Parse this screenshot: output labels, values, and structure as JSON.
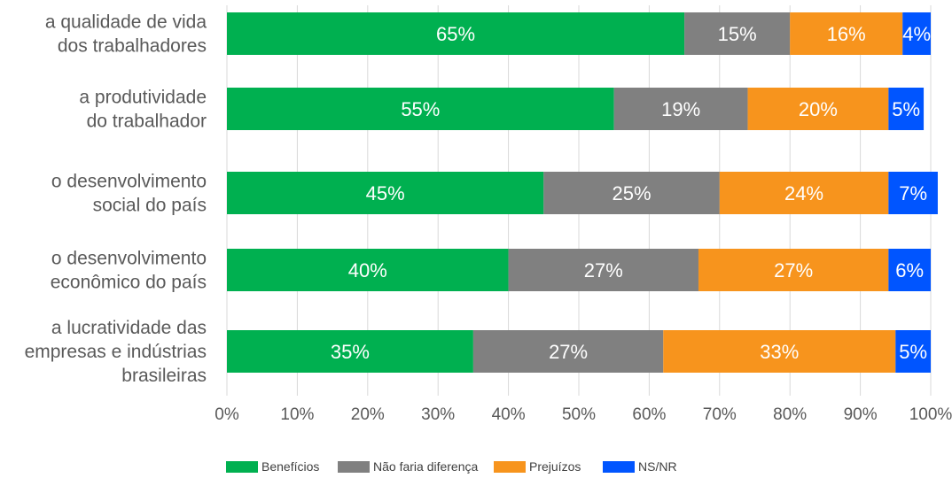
{
  "chart_data": {
    "type": "bar",
    "orientation": "horizontal",
    "stacked": "percent",
    "categories": [
      [
        "a qualidade de vida",
        "dos trabalhadores"
      ],
      [
        "a produtividade",
        "do trabalhador"
      ],
      [
        "o desenvolvimento",
        "social do país"
      ],
      [
        "o desenvolvimento",
        "econômico do país"
      ],
      [
        "a lucratividade das",
        "empresas e indústrias",
        "brasileiras"
      ]
    ],
    "series": [
      {
        "name": "Benefícios",
        "color": "#00b050",
        "values": [
          65,
          55,
          45,
          40,
          35
        ]
      },
      {
        "name": "Não faria diferença",
        "color": "#808080",
        "values": [
          15,
          19,
          25,
          27,
          27
        ]
      },
      {
        "name": "Prejuízos",
        "color": "#f7941d",
        "values": [
          16,
          20,
          24,
          27,
          33
        ]
      },
      {
        "name": "NS/NR",
        "color": "#0055ff",
        "values": [
          4,
          5,
          7,
          6,
          5
        ]
      }
    ],
    "xlim": [
      0,
      100
    ],
    "xticks": [
      "0%",
      "10%",
      "20%",
      "30%",
      "40%",
      "50%",
      "60%",
      "70%",
      "80%",
      "90%",
      "100%"
    ],
    "grid": true,
    "legend_position": "bottom"
  }
}
